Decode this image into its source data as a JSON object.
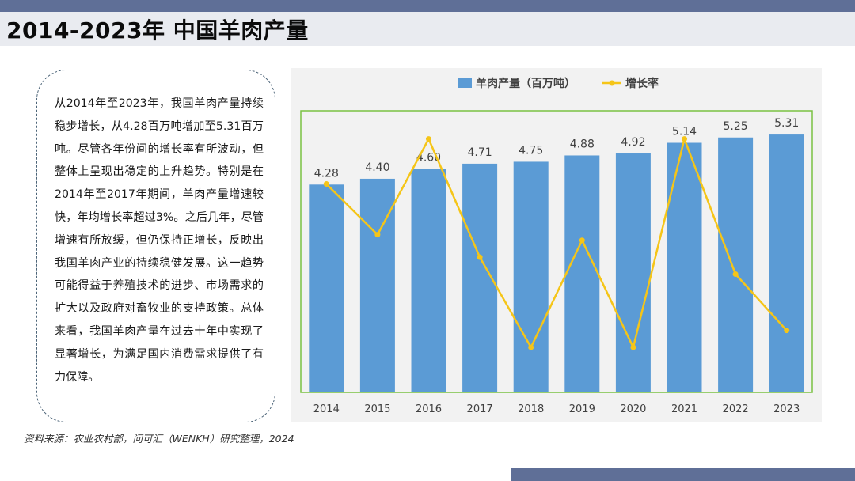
{
  "page": {
    "title": "2014-2023年 中国羊肉产量",
    "body_text": "从2014年至2023年，我国羊肉产量持续稳步增长，从4.28百万吨增加至5.31百万吨。尽管各年份间的增长率有所波动，但整体上呈现出稳定的上升趋势。特别是在2014年至2017年期间，羊肉产量增速较快，年均增长率超过3%。之后几年，尽管增速有所放缓，但仍保持正增长，反映出我国羊肉产业的持续稳健发展。这一趋势可能得益于养殖技术的进步、市场需求的扩大以及政府对畜牧业的支持政策。总体来看，我国羊肉产量在过去十年中实现了显著增长，为满足国内消费需求提供了有力保障。",
    "source": "资料来源：农业农村部，问可汇（WENKH）研究整理，2024"
  },
  "colors": {
    "band": "#5f6f97",
    "title_band": "#e9ebf0",
    "bar": "#5b9bd5",
    "line": "#f5c518",
    "frame": "#7ac143",
    "chart_bg": "#f2f2f2"
  },
  "chart_data": {
    "type": "bar",
    "categories": [
      "2014",
      "2015",
      "2016",
      "2017",
      "2018",
      "2019",
      "2020",
      "2021",
      "2022",
      "2023"
    ],
    "series": [
      {
        "name": "羊肉产量（百万吨）",
        "type": "bar",
        "axis": "primary",
        "values": [
          4.28,
          4.4,
          4.6,
          4.71,
          4.75,
          4.88,
          4.92,
          5.14,
          5.25,
          5.31
        ],
        "labels": [
          "4.28",
          "4.40",
          "4.60",
          "4.71",
          "4.75",
          "4.88",
          "4.92",
          "5.14",
          "5.25",
          "5.31"
        ]
      },
      {
        "name": "增长率",
        "type": "line",
        "axis": "secondary",
        "values": [
          3.7,
          2.8,
          4.5,
          2.4,
          0.8,
          2.7,
          0.8,
          4.5,
          2.1,
          1.1
        ]
      }
    ],
    "ylim": [
      0,
      5.8
    ],
    "y2lim": [
      0,
      5
    ],
    "legend_position": "top",
    "grid": false
  }
}
